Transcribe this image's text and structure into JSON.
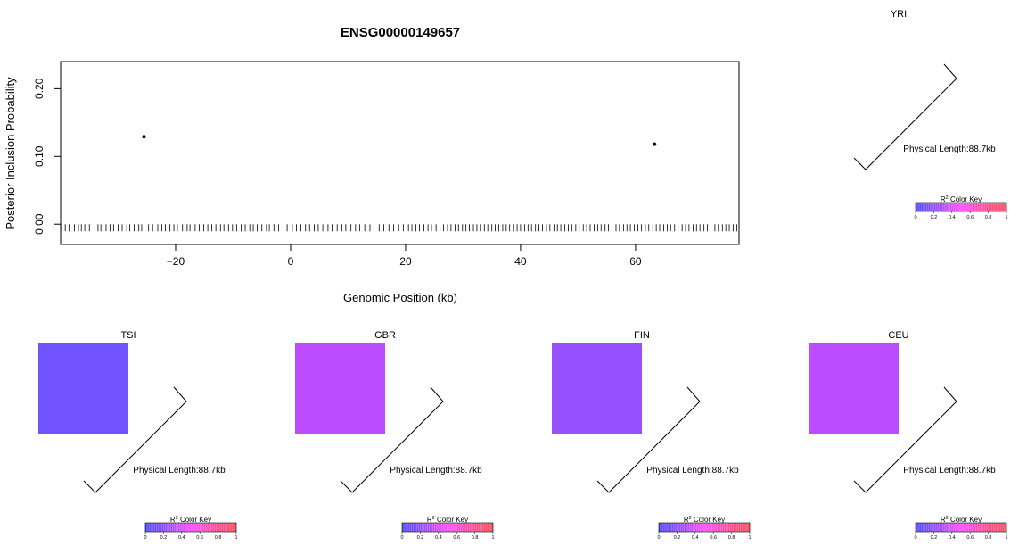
{
  "chart_data": [
    {
      "type": "scatter",
      "title": "ENSG00000149657",
      "xlabel": "Genomic Position (kb)",
      "ylabel": "Posterior Inclusion Probability",
      "xlim": [
        -40,
        78
      ],
      "ylim": [
        -0.03,
        0.24
      ],
      "xticks": [
        -20,
        0,
        20,
        40,
        60
      ],
      "xtick_labels": [
        "−20",
        "0",
        "20",
        "40",
        "60"
      ],
      "yticks": [
        0.0,
        0.1,
        0.2
      ],
      "ytick_labels": [
        "0.00",
        "0.10",
        "0.20"
      ],
      "grid": false,
      "points": [
        {
          "x": -25.5,
          "y": 0.129
        },
        {
          "x": 63.3,
          "y": 0.118
        }
      ],
      "snp_rug_kb": [
        -39.8,
        -39.2,
        -38.5,
        -37.6,
        -36.9,
        -36.4,
        -35.8,
        -35.0,
        -34.2,
        -33.5,
        -33.0,
        -32.1,
        -31.4,
        -30.8,
        -30.0,
        -29.3,
        -28.5,
        -28.0,
        -27.2,
        -26.4,
        -25.9,
        -25.5,
        -24.7,
        -24.0,
        -23.1,
        -22.4,
        -21.8,
        -21.0,
        -20.3,
        -19.7,
        -18.8,
        -18.0,
        -17.5,
        -16.6,
        -15.9,
        -15.1,
        -14.4,
        -13.7,
        -13.0,
        -12.2,
        -11.6,
        -10.8,
        -10.1,
        -9.4,
        -8.6,
        -7.9,
        -7.1,
        -6.5,
        -5.8,
        -5.0,
        -4.2,
        -3.7,
        -2.9,
        -2.1,
        -1.3,
        -0.6,
        0.3,
        1.0,
        1.8,
        2.6,
        3.3,
        4.1,
        4.8,
        5.6,
        6.5,
        7.2,
        8.1,
        8.9,
        9.6,
        10.5,
        11.3,
        12.0,
        12.9,
        13.8,
        14.5,
        15.4,
        16.2,
        17.1,
        17.9,
        18.8,
        19.6,
        20.5,
        21.1,
        21.8,
        22.4,
        23.2,
        23.9,
        24.5,
        25.3,
        26.0,
        26.6,
        27.3,
        27.9,
        28.6,
        29.2,
        29.9,
        30.5,
        31.1,
        31.8,
        32.4,
        33.0,
        33.7,
        34.3,
        35.0,
        35.6,
        36.2,
        36.9,
        37.5,
        38.1,
        38.8,
        39.4,
        40.0,
        40.7,
        41.3,
        41.9,
        42.6,
        43.2,
        43.8,
        44.5,
        45.1,
        45.8,
        46.4,
        47.0,
        47.7,
        48.3,
        48.9,
        49.6,
        50.2,
        50.9,
        51.5,
        52.1,
        52.8,
        53.4,
        54.0,
        54.7,
        55.3,
        55.9,
        56.6,
        57.2,
        57.9,
        58.5,
        59.1,
        59.8,
        60.4,
        61.0,
        61.7,
        62.3,
        63.0,
        63.6,
        64.2,
        64.9,
        65.5,
        66.1,
        66.8,
        67.4,
        68.1,
        68.7,
        69.3,
        70.0,
        70.6,
        71.2,
        71.9,
        72.5,
        73.1,
        73.8,
        74.4,
        75.1,
        75.7,
        76.3,
        77.0,
        77.6
      ]
    },
    {
      "type": "heatmap",
      "panels": [
        {
          "population": "YRI",
          "cell_r2": null,
          "cell_color": null,
          "length_label": "Physical Length:88.7kb"
        },
        {
          "population": "TSI",
          "cell_r2": 0.15,
          "cell_color": "#7052ff",
          "length_label": "Physical Length:88.7kb"
        },
        {
          "population": "GBR",
          "cell_r2": 0.4,
          "cell_color": "#bb4cff",
          "length_label": "Physical Length:88.7kb"
        },
        {
          "population": "FIN",
          "cell_r2": 0.28,
          "cell_color": "#9650ff",
          "length_label": "Physical Length:88.7kb"
        },
        {
          "population": "CEU",
          "cell_r2": 0.4,
          "cell_color": "#bb4cff",
          "length_label": "Physical Length:88.7kb"
        }
      ],
      "color_key": {
        "title_base": "R",
        "title_sup": "2",
        "title_rest": " Color Key",
        "ticks": [
          "0",
          "0.2",
          "0.4",
          "0.6",
          "0.8",
          "1"
        ],
        "gradient": [
          "#4f4fff",
          "#9f4fff",
          "#ff4fff",
          "#ff4f9f",
          "#ff4f5f"
        ]
      }
    }
  ]
}
